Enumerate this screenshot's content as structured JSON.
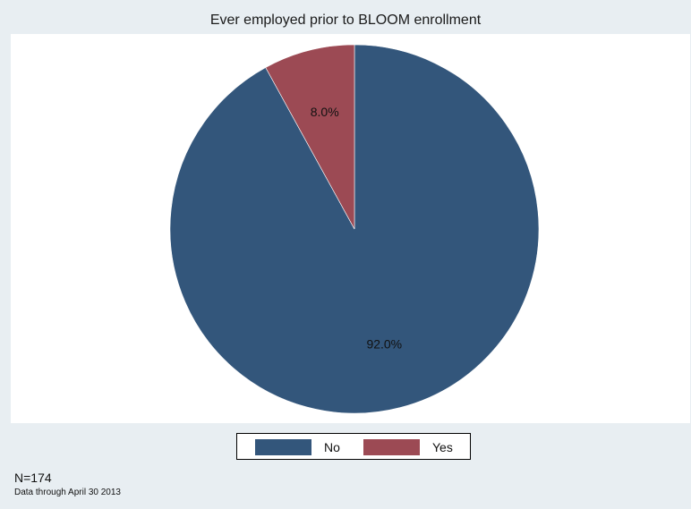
{
  "chart_data": {
    "type": "pie",
    "title": "Ever employed prior to BLOOM enrollment",
    "slices": [
      {
        "name": "No",
        "value": 92.0,
        "label": "92.0%",
        "color": "#33567b"
      },
      {
        "name": "Yes",
        "value": 8.0,
        "label": "8.0%",
        "color": "#9c4a54"
      }
    ],
    "legend": {
      "placement": "bottom-center",
      "items": [
        "No",
        "Yes"
      ]
    },
    "notes": [
      "N=174",
      "Data through April 30 2013"
    ]
  },
  "colors": {
    "background": "#e8eef2",
    "plot_background": "#ffffff"
  }
}
